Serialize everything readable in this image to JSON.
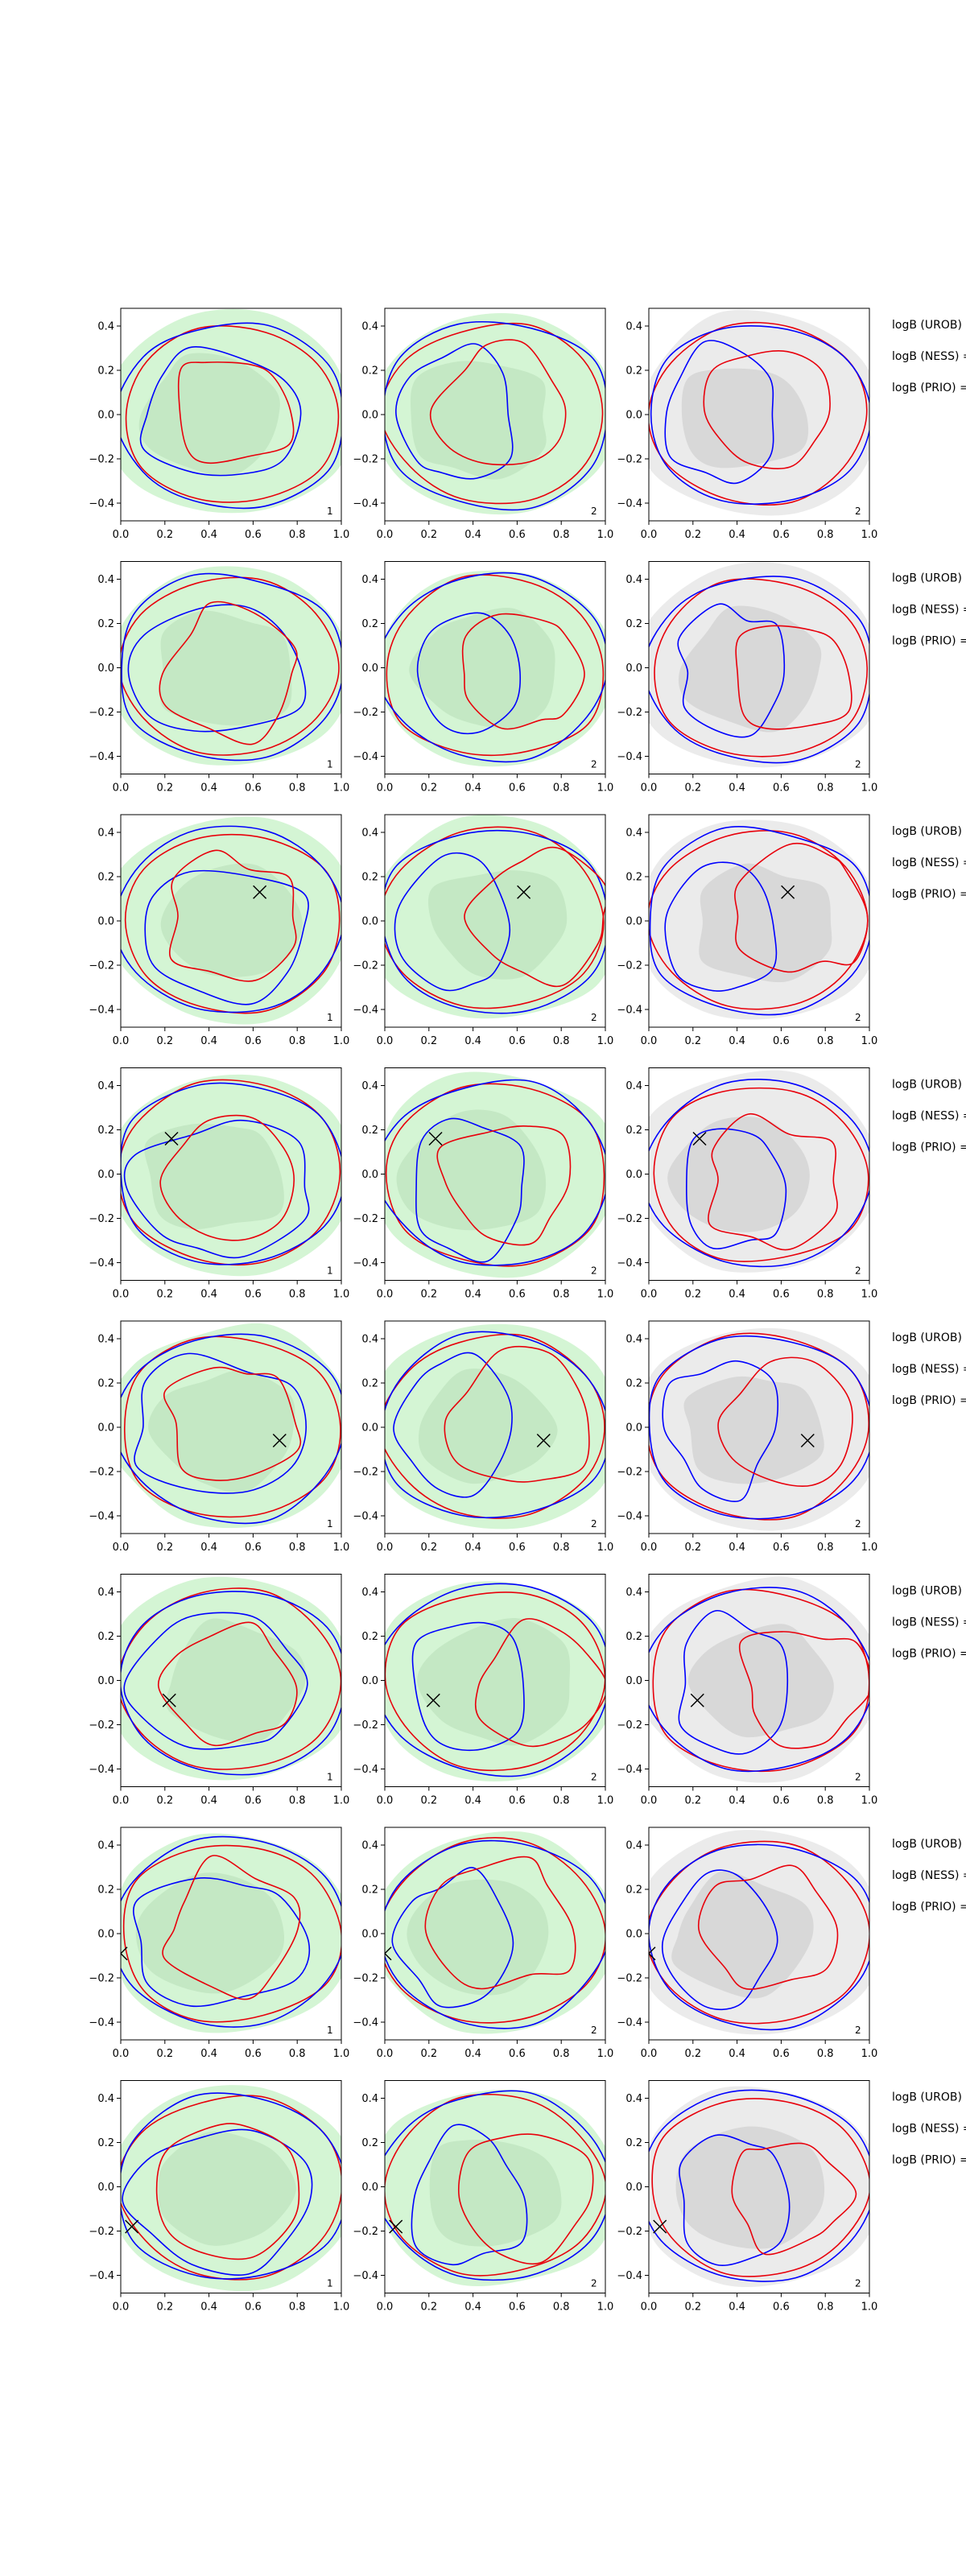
{
  "chart_data": {
    "type": "contour-grid",
    "rows": 8,
    "cols": 3,
    "xlim": [
      0.0,
      1.0
    ],
    "ylim": [
      -0.48,
      0.48
    ],
    "x_ticks": [
      "0.0",
      "0.2",
      "0.4",
      "0.6",
      "0.8",
      "1.0"
    ],
    "y_ticks": [
      "0.4",
      "0.2",
      "0.0",
      "−0.2",
      "−0.4"
    ],
    "y_tick_values": [
      0.4,
      0.2,
      0.0,
      -0.2,
      -0.4
    ],
    "x_tick_values": [
      0.0,
      0.2,
      0.4,
      0.6,
      0.8,
      1.0
    ],
    "side_labels": [
      "logB (UROB) =",
      "logB (NESS) =",
      "logB (PRIO) ="
    ],
    "panel_ids": [
      "1",
      "2",
      "2"
    ],
    "colors": {
      "fill_green_outer": "#d4f5d4",
      "fill_green_inner": "#c4e8c4",
      "fill_grey_outer": "#ebebeb",
      "fill_grey_inner": "#d8d8d8",
      "line_red": "#e8000b",
      "line_blue": "#0000ff"
    },
    "markers": [
      null,
      null,
      {
        "x": 0.63,
        "y": 0.13
      },
      {
        "x": 0.23,
        "y": 0.16
      },
      {
        "x": 0.72,
        "y": -0.06
      },
      {
        "x": 0.22,
        "y": -0.09
      },
      {
        "x": 0.0,
        "y": -0.09
      },
      {
        "x": 0.05,
        "y": -0.18
      }
    ]
  }
}
